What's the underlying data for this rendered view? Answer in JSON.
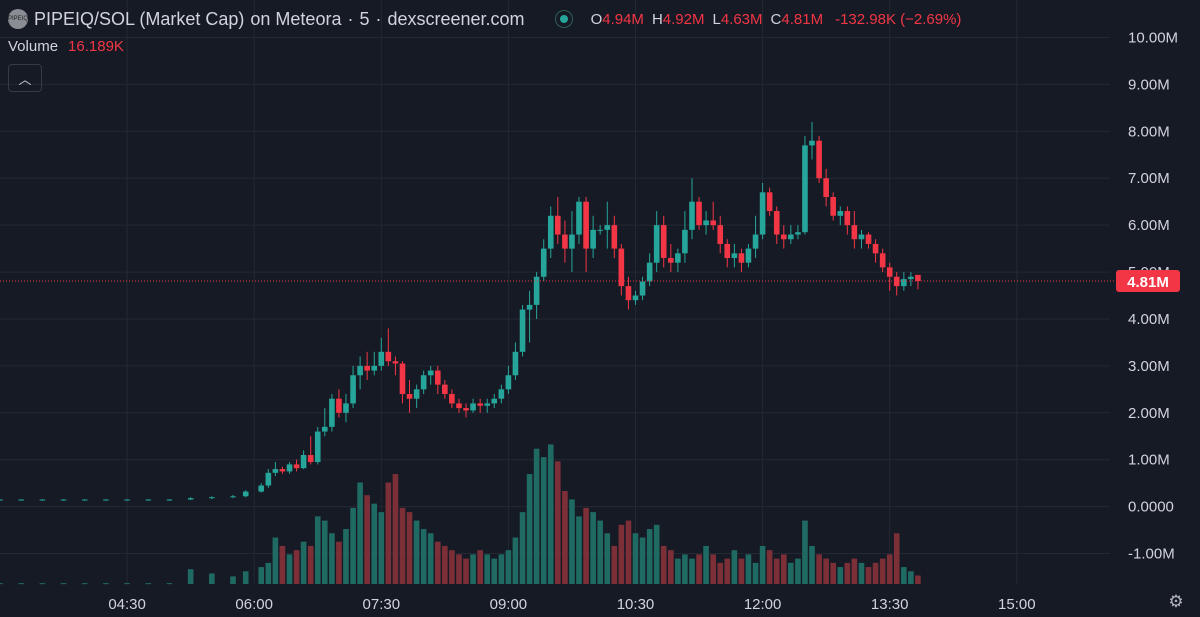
{
  "header": {
    "pair": "PIPEIQ/SOL (Market Cap)",
    "exchange": "on Meteora",
    "timeframe": "5",
    "source": "dexscreener.com",
    "logo_text": "PIPEIQ",
    "ohlc": {
      "o_label": "O",
      "o_value": "4.94M",
      "h_label": "H",
      "h_value": "4.92M",
      "l_label": "L",
      "l_value": "4.63M",
      "c_label": "C",
      "c_value": "4.81M",
      "change": "-132.98K (−2.69%)"
    }
  },
  "volume": {
    "label": "Volume",
    "value": "16.189K"
  },
  "collapse_icon": "chevron-up-icon",
  "settings_icon": "gear-icon",
  "colors": {
    "up": "#26a69a",
    "down": "#f23645",
    "up_volume": "#1f6b63",
    "down_volume": "#7d2f38",
    "background": "#161a25",
    "grid": "#242833",
    "text": "#d1d4dc"
  },
  "chart_data": {
    "type": "candlestick",
    "y_axis_labels": [
      "10.00M",
      "9.00M",
      "8.00M",
      "7.00M",
      "6.00M",
      "5.00M",
      "4.00M",
      "3.00M",
      "2.00M",
      "1.00M",
      "0.0000",
      "-1.00M"
    ],
    "y_axis_values": [
      10,
      9,
      8,
      7,
      6,
      5,
      4,
      3,
      2,
      1,
      0,
      -1
    ],
    "ylim": [
      -1.65,
      10.8
    ],
    "x_axis_labels": [
      "04:30",
      "06:00",
      "07:30",
      "09:00",
      "10:30",
      "12:00",
      "13:30",
      "15:00"
    ],
    "x_axis_hours": [
      4.5,
      6,
      7.5,
      9,
      10.5,
      12,
      13.5,
      15
    ],
    "xlim": [
      3.0,
      16.1
    ],
    "last_price": 4.81,
    "last_price_label": "4.81M",
    "candle_interval_minutes": 5,
    "series": [
      {
        "name": "Market Cap",
        "ohlc": [
          [
            3.0,
            0.15,
            0.16,
            0.14,
            0.15
          ],
          [
            3.25,
            0.15,
            0.16,
            0.14,
            0.15
          ],
          [
            3.5,
            0.15,
            0.16,
            0.14,
            0.15
          ],
          [
            3.75,
            0.15,
            0.16,
            0.14,
            0.15
          ],
          [
            4.0,
            0.15,
            0.16,
            0.14,
            0.15
          ],
          [
            4.25,
            0.15,
            0.16,
            0.14,
            0.15
          ],
          [
            4.5,
            0.15,
            0.16,
            0.14,
            0.15
          ],
          [
            4.75,
            0.15,
            0.16,
            0.14,
            0.15
          ],
          [
            5.0,
            0.15,
            0.16,
            0.14,
            0.15
          ],
          [
            5.25,
            0.15,
            0.2,
            0.14,
            0.18
          ],
          [
            5.5,
            0.18,
            0.22,
            0.16,
            0.2
          ],
          [
            5.75,
            0.2,
            0.25,
            0.18,
            0.22
          ],
          [
            5.9,
            0.22,
            0.35,
            0.2,
            0.32
          ],
          [
            6.083,
            0.32,
            0.5,
            0.3,
            0.45
          ],
          [
            6.167,
            0.45,
            0.8,
            0.4,
            0.72
          ],
          [
            6.25,
            0.72,
            0.95,
            0.65,
            0.8
          ],
          [
            6.333,
            0.8,
            0.85,
            0.7,
            0.75
          ],
          [
            6.417,
            0.75,
            0.95,
            0.7,
            0.9
          ],
          [
            6.5,
            0.9,
            1.0,
            0.75,
            0.82
          ],
          [
            6.583,
            0.82,
            1.2,
            0.8,
            1.1
          ],
          [
            6.667,
            1.1,
            1.5,
            0.9,
            0.95
          ],
          [
            6.75,
            0.95,
            1.7,
            0.9,
            1.6
          ],
          [
            6.833,
            1.6,
            2.1,
            1.5,
            1.7
          ],
          [
            6.917,
            1.7,
            2.4,
            1.6,
            2.3
          ],
          [
            7.0,
            2.3,
            2.5,
            1.9,
            2.0
          ],
          [
            7.083,
            2.0,
            2.4,
            1.8,
            2.2
          ],
          [
            7.167,
            2.2,
            3.0,
            2.1,
            2.8
          ],
          [
            7.25,
            2.8,
            3.2,
            2.5,
            3.0
          ],
          [
            7.333,
            3.0,
            3.3,
            2.7,
            2.9
          ],
          [
            7.417,
            2.9,
            3.3,
            2.8,
            3.0
          ],
          [
            7.5,
            3.0,
            3.6,
            2.9,
            3.3
          ],
          [
            7.583,
            3.3,
            3.8,
            3.0,
            3.1
          ],
          [
            7.667,
            3.1,
            3.2,
            2.8,
            3.05
          ],
          [
            7.75,
            3.05,
            3.1,
            2.2,
            2.4
          ],
          [
            7.833,
            2.4,
            2.7,
            2.0,
            2.3
          ],
          [
            7.917,
            2.3,
            2.6,
            2.1,
            2.5
          ],
          [
            8.0,
            2.5,
            2.9,
            2.4,
            2.8
          ],
          [
            8.083,
            2.8,
            3.0,
            2.6,
            2.9
          ],
          [
            8.167,
            2.9,
            3.0,
            2.4,
            2.6
          ],
          [
            8.25,
            2.6,
            2.7,
            2.3,
            2.4
          ],
          [
            8.333,
            2.4,
            2.5,
            2.1,
            2.2
          ],
          [
            8.417,
            2.2,
            2.3,
            2.0,
            2.1
          ],
          [
            8.5,
            2.1,
            2.2,
            1.9,
            2.05
          ],
          [
            8.583,
            2.05,
            2.3,
            2.0,
            2.2
          ],
          [
            8.667,
            2.2,
            2.3,
            2.0,
            2.15
          ],
          [
            8.75,
            2.15,
            2.3,
            2.0,
            2.2
          ],
          [
            8.833,
            2.2,
            2.4,
            2.1,
            2.3
          ],
          [
            8.917,
            2.3,
            2.6,
            2.2,
            2.5
          ],
          [
            9.0,
            2.5,
            3.0,
            2.4,
            2.8
          ],
          [
            9.083,
            2.8,
            3.5,
            2.7,
            3.3
          ],
          [
            9.167,
            3.3,
            4.3,
            3.2,
            4.2
          ],
          [
            9.25,
            4.2,
            4.6,
            3.5,
            4.3
          ],
          [
            9.333,
            4.3,
            5.0,
            4.0,
            4.9
          ],
          [
            9.417,
            4.9,
            5.7,
            4.8,
            5.5
          ],
          [
            9.5,
            5.5,
            6.4,
            5.3,
            6.2
          ],
          [
            9.583,
            6.2,
            6.6,
            5.6,
            5.8
          ],
          [
            9.667,
            5.8,
            6.1,
            5.2,
            5.5
          ],
          [
            9.75,
            5.5,
            6.3,
            5.0,
            5.8
          ],
          [
            9.833,
            5.8,
            6.6,
            5.6,
            6.5
          ],
          [
            9.917,
            6.5,
            6.6,
            5.0,
            5.5
          ],
          [
            10.0,
            5.5,
            6.2,
            5.3,
            5.9
          ],
          [
            10.083,
            5.9,
            6.0,
            5.8,
            5.9
          ],
          [
            10.167,
            5.9,
            6.5,
            5.5,
            6.0
          ],
          [
            10.25,
            6.0,
            6.2,
            5.3,
            5.5
          ],
          [
            10.333,
            5.5,
            5.6,
            4.5,
            4.7
          ],
          [
            10.417,
            4.7,
            4.9,
            4.2,
            4.4
          ],
          [
            10.5,
            4.4,
            4.6,
            4.3,
            4.5
          ],
          [
            10.583,
            4.5,
            4.9,
            4.4,
            4.8
          ],
          [
            10.667,
            4.8,
            5.4,
            4.7,
            5.2
          ],
          [
            10.75,
            5.2,
            6.3,
            5.0,
            6.0
          ],
          [
            10.833,
            6.0,
            6.2,
            5.1,
            5.3
          ],
          [
            10.917,
            5.3,
            5.6,
            5.0,
            5.2
          ],
          [
            11.0,
            5.2,
            5.5,
            5.0,
            5.4
          ],
          [
            11.083,
            5.4,
            6.3,
            5.2,
            5.9
          ],
          [
            11.167,
            5.9,
            7.0,
            5.7,
            6.5
          ],
          [
            11.25,
            6.5,
            6.6,
            5.9,
            6.0
          ],
          [
            11.333,
            6.0,
            6.3,
            5.8,
            6.1
          ],
          [
            11.417,
            6.1,
            6.5,
            5.9,
            6.0
          ],
          [
            11.5,
            6.0,
            6.2,
            5.4,
            5.6
          ],
          [
            11.583,
            5.6,
            5.7,
            5.1,
            5.3
          ],
          [
            11.667,
            5.3,
            5.6,
            5.1,
            5.4
          ],
          [
            11.75,
            5.4,
            5.5,
            5.0,
            5.2
          ],
          [
            11.833,
            5.2,
            5.6,
            5.1,
            5.5
          ],
          [
            11.917,
            5.5,
            6.2,
            5.3,
            5.8
          ],
          [
            12.0,
            5.8,
            6.9,
            5.7,
            6.7
          ],
          [
            12.083,
            6.7,
            6.8,
            6.2,
            6.3
          ],
          [
            12.167,
            6.3,
            6.4,
            5.6,
            5.8
          ],
          [
            12.25,
            5.8,
            6.0,
            5.5,
            5.7
          ],
          [
            12.333,
            5.7,
            6.0,
            5.6,
            5.8
          ],
          [
            12.417,
            5.8,
            6.0,
            5.7,
            5.85
          ],
          [
            12.5,
            5.85,
            7.9,
            5.8,
            7.7
          ],
          [
            12.583,
            7.7,
            8.2,
            7.4,
            7.8
          ],
          [
            12.667,
            7.8,
            7.9,
            6.9,
            7.0
          ],
          [
            12.75,
            7.0,
            7.2,
            6.4,
            6.6
          ],
          [
            12.833,
            6.6,
            6.7,
            6.1,
            6.2
          ],
          [
            12.917,
            6.2,
            6.4,
            6.0,
            6.3
          ],
          [
            13.0,
            6.3,
            6.4,
            5.8,
            6.0
          ],
          [
            13.083,
            6.0,
            6.3,
            5.5,
            5.7
          ],
          [
            13.167,
            5.7,
            5.9,
            5.5,
            5.8
          ],
          [
            13.25,
            5.8,
            5.85,
            5.5,
            5.6
          ],
          [
            13.333,
            5.6,
            5.7,
            5.2,
            5.4
          ],
          [
            13.417,
            5.4,
            5.5,
            5.0,
            5.1
          ],
          [
            13.5,
            5.1,
            5.2,
            4.6,
            4.9
          ],
          [
            13.583,
            4.9,
            5.0,
            4.5,
            4.7
          ],
          [
            13.667,
            4.7,
            5.0,
            4.6,
            4.85
          ],
          [
            13.75,
            4.85,
            5.0,
            4.7,
            4.9
          ],
          [
            13.833,
            4.94,
            4.92,
            4.63,
            4.81
          ]
        ]
      },
      {
        "name": "Volume",
        "values": [
          0.02,
          0.02,
          0.02,
          0.02,
          0.02,
          0.02,
          0.02,
          0.02,
          0.02,
          0.35,
          0.25,
          0.18,
          0.3,
          0.4,
          0.5,
          1.1,
          0.9,
          0.7,
          0.8,
          1.0,
          0.9,
          1.6,
          1.5,
          1.2,
          1.0,
          1.3,
          1.8,
          2.4,
          2.1,
          1.9,
          1.7,
          2.4,
          2.6,
          1.8,
          1.7,
          1.5,
          1.3,
          1.2,
          1.0,
          0.9,
          0.8,
          0.7,
          0.6,
          0.7,
          0.8,
          0.7,
          0.6,
          0.7,
          0.8,
          1.1,
          1.7,
          2.6,
          3.2,
          3.0,
          3.3,
          2.9,
          2.2,
          2.0,
          1.6,
          1.8,
          1.7,
          1.5,
          1.2,
          0.9,
          1.4,
          1.5,
          1.2,
          1.1,
          1.3,
          1.4,
          0.9,
          0.8,
          0.6,
          0.7,
          0.6,
          0.7,
          0.9,
          0.7,
          0.5,
          0.6,
          0.8,
          0.6,
          0.7,
          0.5,
          0.9,
          0.8,
          0.6,
          0.7,
          0.5,
          0.6,
          1.5,
          0.9,
          0.7,
          0.6,
          0.5,
          0.4,
          0.5,
          0.6,
          0.5,
          0.4,
          0.5,
          0.6,
          0.7,
          1.2,
          0.4,
          0.3,
          0.2
        ]
      }
    ]
  }
}
